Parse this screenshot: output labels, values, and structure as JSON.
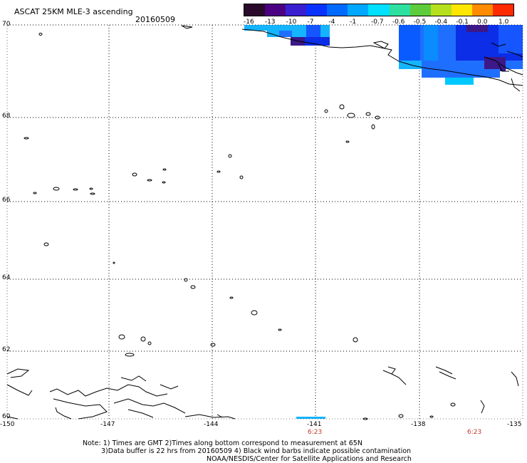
{
  "header": {
    "title": "ASCAT 25KM MLE-3 ascending",
    "date": "20160509"
  },
  "colorbar": {
    "labels": [
      "-16",
      "-13",
      "-10",
      "-7",
      "-4",
      "-1",
      "-0.7",
      "-0.6",
      "-0.5",
      "-0.4",
      "-0.1",
      "0.0",
      "1.0"
    ],
    "colors": [
      "#2a0a2a",
      "#4b0082",
      "#3a1fd0",
      "#0a32ff",
      "#006aff",
      "#00a8ff",
      "#00e0ff",
      "#2de0a0",
      "#5ccc3c",
      "#b6e01e",
      "#ffe600",
      "#ff8c00",
      "#ff2a00"
    ]
  },
  "map": {
    "lat_labels": [
      "70",
      "68",
      "66",
      "64",
      "62",
      "60"
    ],
    "lon_labels": [
      "-150",
      "-147",
      "-144",
      "-141",
      "-138",
      "-135"
    ],
    "time_labels": [
      "6:23",
      "6:23"
    ],
    "swath_colors": {
      "light_blue": "#14b4ff",
      "blue": "#1f6fff",
      "medium_blue": "#1656ff",
      "dark_blue": "#0b2ee6",
      "purple": "#3c1888",
      "cyan": "#00c8ff"
    }
  },
  "notes": {
    "line1": "Note: 1) Times are GMT 2)Times along bottom correspond to measurement at 65N",
    "line2": "3)Data buffer is 22 hrs from 20160509 4) Black wind barbs indicate possible contamination",
    "line3": "NOAA/NESDIS/Center for Satellite Applications and Research"
  }
}
